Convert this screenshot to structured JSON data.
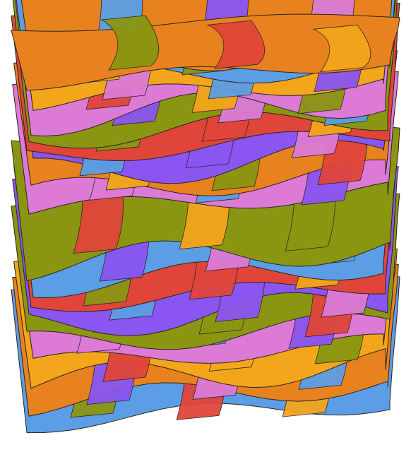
{
  "caption": "",
  "palette": {
    "orange": "#e8821e",
    "blue": "#5b9ee6",
    "royal_blue": "#4f86e6",
    "olive": "#8a9612",
    "red": "#e0453a",
    "violet": "#8a55f0",
    "pink": "#dc7ad6",
    "gold": "#f3a51b",
    "edge": "#2a2420",
    "background": "#ffffff"
  },
  "surfaces": {
    "count": 18,
    "color_cycle": [
      "blue",
      "orange",
      "gold",
      "pink",
      "olive",
      "violet",
      "red",
      "blue",
      "olive",
      "pink",
      "orange",
      "violet",
      "red",
      "olive",
      "pink",
      "gold",
      "blue",
      "orange"
    ]
  }
}
